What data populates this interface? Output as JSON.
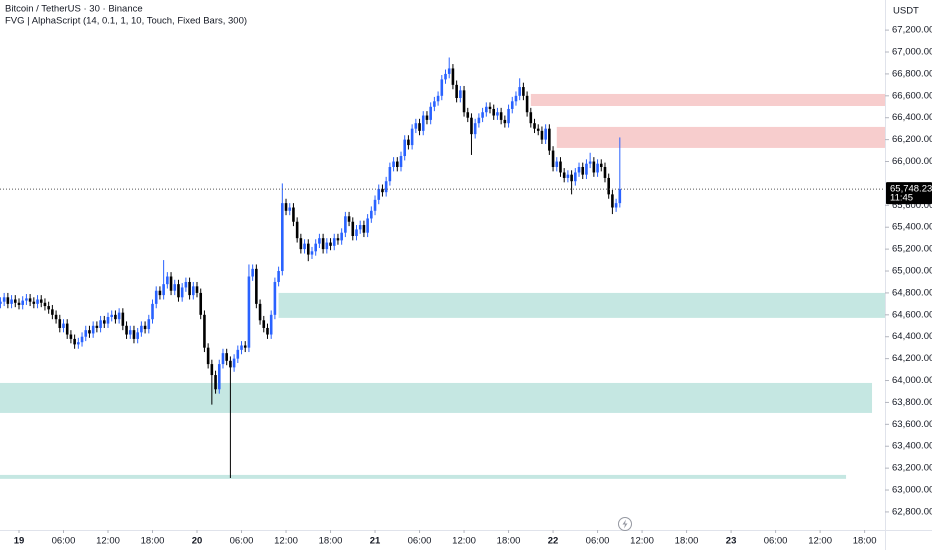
{
  "chart_data": {
    "type": "candlestick",
    "title": "Bitcoin / TetherUS · 30 · Binance",
    "subtitle": "FVG | AlphaScript (14, 0.1, 1, 10, Touch, Fixed Bars, 300)",
    "currency": "USDT",
    "up_color": "#2962ff",
    "down_color": "#000000",
    "candles": [
      [
        64700,
        64760,
        64660,
        64720
      ],
      [
        64720,
        64800,
        64680,
        64760
      ],
      [
        64760,
        64800,
        64660,
        64700
      ],
      [
        64700,
        64780,
        64660,
        64740
      ],
      [
        64740,
        64780,
        64670,
        64710
      ],
      [
        64710,
        64750,
        64650,
        64690
      ],
      [
        64690,
        64770,
        64650,
        64730
      ],
      [
        64730,
        64790,
        64690,
        64750
      ],
      [
        64750,
        64790,
        64680,
        64720
      ],
      [
        64720,
        64760,
        64660,
        64700
      ],
      [
        64700,
        64780,
        64660,
        64740
      ],
      [
        64740,
        64780,
        64670,
        64710
      ],
      [
        64710,
        64750,
        64640,
        64680
      ],
      [
        64680,
        64720,
        64610,
        64650
      ],
      [
        64650,
        64690,
        64560,
        64600
      ],
      [
        64600,
        64640,
        64520,
        64560
      ],
      [
        64560,
        64600,
        64440,
        64480
      ],
      [
        64480,
        64560,
        64440,
        64520
      ],
      [
        64520,
        64560,
        64380,
        64420
      ],
      [
        64420,
        64460,
        64340,
        64380
      ],
      [
        64380,
        64420,
        64290,
        64330
      ],
      [
        64330,
        64390,
        64290,
        64350
      ],
      [
        64350,
        64440,
        64310,
        64400
      ],
      [
        64400,
        64500,
        64360,
        64460
      ],
      [
        64460,
        64500,
        64390,
        64430
      ],
      [
        64430,
        64540,
        64390,
        64500
      ],
      [
        64500,
        64540,
        64440,
        64480
      ],
      [
        64480,
        64590,
        64440,
        64550
      ],
      [
        64550,
        64590,
        64480,
        64520
      ],
      [
        64520,
        64620,
        64480,
        64580
      ],
      [
        64580,
        64640,
        64540,
        64600
      ],
      [
        64600,
        64640,
        64520,
        64560
      ],
      [
        64560,
        64660,
        64520,
        64620
      ],
      [
        64620,
        64660,
        64460,
        64500
      ],
      [
        64500,
        64540,
        64380,
        64420
      ],
      [
        64420,
        64500,
        64380,
        64460
      ],
      [
        64460,
        64500,
        64340,
        64380
      ],
      [
        64380,
        64480,
        64340,
        64440
      ],
      [
        64440,
        64540,
        64400,
        64500
      ],
      [
        64500,
        64540,
        64430,
        64470
      ],
      [
        64470,
        64600,
        64430,
        64560
      ],
      [
        64560,
        64740,
        64520,
        64700
      ],
      [
        64700,
        64860,
        64660,
        64820
      ],
      [
        64820,
        64860,
        64740,
        64780
      ],
      [
        64780,
        65100,
        64740,
        64880
      ],
      [
        64880,
        64990,
        64840,
        64950
      ],
      [
        64950,
        64990,
        64780,
        64820
      ],
      [
        64820,
        64920,
        64780,
        64880
      ],
      [
        64880,
        64920,
        64720,
        64760
      ],
      [
        64760,
        64890,
        64720,
        64850
      ],
      [
        64850,
        64940,
        64810,
        64900
      ],
      [
        64900,
        64940,
        64740,
        64780
      ],
      [
        64780,
        64900,
        64740,
        64860
      ],
      [
        64860,
        64900,
        64760,
        64800
      ],
      [
        64800,
        64840,
        64560,
        64600
      ],
      [
        64600,
        64640,
        64260,
        64300
      ],
      [
        64300,
        64340,
        64110,
        64150
      ],
      [
        64150,
        64190,
        63780,
        64050
      ],
      [
        64050,
        64090,
        63880,
        63920
      ],
      [
        63920,
        64190,
        63880,
        64150
      ],
      [
        64150,
        64290,
        64110,
        64250
      ],
      [
        64250,
        64290,
        64140,
        64180
      ],
      [
        64180,
        64220,
        63110,
        64120
      ],
      [
        64120,
        64240,
        64080,
        64200
      ],
      [
        64200,
        64320,
        64160,
        64280
      ],
      [
        64280,
        64360,
        64240,
        64320
      ],
      [
        64320,
        64360,
        64260,
        64300
      ],
      [
        64300,
        65060,
        64260,
        64950
      ],
      [
        64950,
        65060,
        64910,
        65020
      ],
      [
        65020,
        65060,
        64660,
        64700
      ],
      [
        64700,
        64740,
        64510,
        64550
      ],
      [
        64550,
        64590,
        64440,
        64480
      ],
      [
        64480,
        64520,
        64380,
        64420
      ],
      [
        64420,
        64640,
        64380,
        64600
      ],
      [
        64600,
        64940,
        64560,
        64900
      ],
      [
        64900,
        65040,
        64860,
        65000
      ],
      [
        65000,
        65800,
        64960,
        65620
      ],
      [
        65620,
        65660,
        65510,
        65550
      ],
      [
        65550,
        65620,
        65510,
        65580
      ],
      [
        65580,
        65620,
        65410,
        65450
      ],
      [
        65450,
        65490,
        65260,
        65300
      ],
      [
        65300,
        65340,
        65160,
        65200
      ],
      [
        65200,
        65290,
        65160,
        65250
      ],
      [
        65250,
        65290,
        65090,
        65150
      ],
      [
        65150,
        65220,
        65110,
        65180
      ],
      [
        65180,
        65290,
        65140,
        65250
      ],
      [
        65250,
        65340,
        65210,
        65300
      ],
      [
        65300,
        65340,
        65160,
        65200
      ],
      [
        65200,
        65300,
        65160,
        65260
      ],
      [
        65260,
        65300,
        65190,
        65230
      ],
      [
        65230,
        65340,
        65190,
        65300
      ],
      [
        65300,
        65340,
        65240,
        65280
      ],
      [
        65280,
        65390,
        65240,
        65350
      ],
      [
        65350,
        65540,
        65310,
        65500
      ],
      [
        65500,
        65540,
        65410,
        65450
      ],
      [
        65450,
        65490,
        65280,
        65320
      ],
      [
        65320,
        65420,
        65280,
        65380
      ],
      [
        65380,
        65460,
        65340,
        65420
      ],
      [
        65420,
        65460,
        65310,
        65350
      ],
      [
        65350,
        65520,
        65310,
        65480
      ],
      [
        65480,
        65590,
        65440,
        65550
      ],
      [
        65550,
        65690,
        65510,
        65650
      ],
      [
        65650,
        65790,
        65610,
        65750
      ],
      [
        65750,
        65790,
        65680,
        65720
      ],
      [
        65720,
        65860,
        65680,
        65820
      ],
      [
        65820,
        65990,
        65780,
        65950
      ],
      [
        65950,
        66040,
        65910,
        66000
      ],
      [
        66000,
        66040,
        65910,
        65950
      ],
      [
        65950,
        66090,
        65910,
        66050
      ],
      [
        66050,
        66240,
        66010,
        66200
      ],
      [
        66200,
        66240,
        66110,
        66150
      ],
      [
        66150,
        66340,
        66110,
        66300
      ],
      [
        66300,
        66390,
        66260,
        66350
      ],
      [
        66350,
        66390,
        66240,
        66280
      ],
      [
        66280,
        66460,
        66240,
        66420
      ],
      [
        66420,
        66460,
        66340,
        66380
      ],
      [
        66380,
        66540,
        66340,
        66500
      ],
      [
        66500,
        66590,
        66460,
        66550
      ],
      [
        66550,
        66640,
        66510,
        66600
      ],
      [
        66600,
        66790,
        66560,
        66750
      ],
      [
        66750,
        66840,
        66710,
        66800
      ],
      [
        66800,
        66950,
        66760,
        66850
      ],
      [
        66850,
        66890,
        66660,
        66700
      ],
      [
        66700,
        66740,
        66540,
        66580
      ],
      [
        66580,
        66690,
        66540,
        66650
      ],
      [
        66650,
        66690,
        66410,
        66450
      ],
      [
        66450,
        66490,
        66360,
        66400
      ],
      [
        66400,
        66440,
        66060,
        66250
      ],
      [
        66250,
        66390,
        66210,
        66350
      ],
      [
        66350,
        66440,
        66310,
        66400
      ],
      [
        66400,
        66490,
        66360,
        66450
      ],
      [
        66450,
        66540,
        66410,
        66500
      ],
      [
        66500,
        66540,
        66440,
        66480
      ],
      [
        66480,
        66520,
        66380,
        66420
      ],
      [
        66420,
        66490,
        66380,
        66450
      ],
      [
        66450,
        66490,
        66340,
        66380
      ],
      [
        66380,
        66420,
        66310,
        66350
      ],
      [
        66350,
        66520,
        66310,
        66480
      ],
      [
        66480,
        66590,
        66440,
        66550
      ],
      [
        66550,
        66640,
        66510,
        66600
      ],
      [
        66600,
        66760,
        66560,
        66680
      ],
      [
        66680,
        66720,
        66560,
        66600
      ],
      [
        66600,
        66640,
        66410,
        66450
      ],
      [
        66450,
        66490,
        66310,
        66350
      ],
      [
        66350,
        66390,
        66260,
        66300
      ],
      [
        66300,
        66340,
        66240,
        66280
      ],
      [
        66280,
        66320,
        66160,
        66200
      ],
      [
        66200,
        66340,
        66160,
        66300
      ],
      [
        66300,
        66340,
        66060,
        66100
      ],
      [
        66100,
        66140,
        65910,
        65950
      ],
      [
        65950,
        66040,
        65910,
        66000
      ],
      [
        66000,
        66040,
        65860,
        65900
      ],
      [
        65900,
        65940,
        65810,
        65850
      ],
      [
        65850,
        65920,
        65810,
        65880
      ],
      [
        65880,
        65920,
        65700,
        65820
      ],
      [
        65820,
        65940,
        65780,
        65900
      ],
      [
        65900,
        65990,
        65860,
        65950
      ],
      [
        65950,
        65990,
        65840,
        65880
      ],
      [
        65880,
        66020,
        65840,
        65980
      ],
      [
        65980,
        66080,
        65940,
        66000
      ],
      [
        66000,
        66040,
        65860,
        65900
      ],
      [
        65900,
        66020,
        65860,
        65980
      ],
      [
        65980,
        66020,
        65910,
        65950
      ],
      [
        65950,
        65990,
        65810,
        65850
      ],
      [
        65850,
        65890,
        65660,
        65700
      ],
      [
        65700,
        65740,
        65520,
        65580
      ],
      [
        65580,
        65660,
        65540,
        65620
      ],
      [
        65620,
        66220,
        65580,
        65748.23
      ]
    ],
    "last_price": {
      "value": 65748.23,
      "label": "65,748.23"
    },
    "countdown": "11:45",
    "zones": [
      {
        "top": 66617,
        "bottom": 66507,
        "from": 143,
        "to": 238.5,
        "color": "#f7cdcd"
      },
      {
        "top": 66316,
        "bottom": 66124,
        "from": 150,
        "to": 238.5,
        "color": "#f7cdcd"
      },
      {
        "top": 64800,
        "bottom": 64572,
        "from": 75,
        "to": 238.5,
        "color": "#c5e7e2"
      },
      {
        "top": 63978,
        "bottom": 63704,
        "from": -0.12,
        "to": 235,
        "color": "#c5e7e2"
      },
      {
        "top": 63138,
        "bottom": 63102,
        "from": -0.12,
        "to": 228,
        "color": "#c5e7e2"
      }
    ],
    "xlim": [
      -0.12,
      238.5
    ],
    "ylim": [
      62635,
      67475
    ],
    "xticks": [
      {
        "value": 5,
        "label": "19"
      },
      {
        "value": 17,
        "label": "06:00"
      },
      {
        "value": 29,
        "label": "12:00"
      },
      {
        "value": 41,
        "label": "18:00"
      },
      {
        "value": 53,
        "label": "20"
      },
      {
        "value": 65,
        "label": "06:00"
      },
      {
        "value": 77,
        "label": "12:00"
      },
      {
        "value": 89,
        "label": "18:00"
      },
      {
        "value": 101,
        "label": "21"
      },
      {
        "value": 113,
        "label": "06:00"
      },
      {
        "value": 125,
        "label": "12:00"
      },
      {
        "value": 137,
        "label": "18:00"
      },
      {
        "value": 149,
        "label": "22"
      },
      {
        "value": 161,
        "label": "06:00"
      },
      {
        "value": 173,
        "label": "12:00"
      },
      {
        "value": 185,
        "label": "18:00"
      },
      {
        "value": 197,
        "label": "23"
      },
      {
        "value": 209,
        "label": "06:00"
      },
      {
        "value": 221,
        "label": "12:00"
      },
      {
        "value": 233,
        "label": "18:00"
      }
    ],
    "yticks": [
      {
        "value": 62800,
        "label": "62,800.00"
      },
      {
        "value": 63000,
        "label": "63,000.00"
      },
      {
        "value": 63200,
        "label": "63,200.00"
      },
      {
        "value": 63400,
        "label": "63,400.00"
      },
      {
        "value": 63600,
        "label": "63,600.00"
      },
      {
        "value": 63800,
        "label": "63,800.00"
      },
      {
        "value": 64000,
        "label": "64,000.00"
      },
      {
        "value": 64200,
        "label": "64,200.00"
      },
      {
        "value": 64400,
        "label": "64,400.00"
      },
      {
        "value": 64600,
        "label": "64,600.00"
      },
      {
        "value": 64800,
        "label": "64,800.00"
      },
      {
        "value": 65000,
        "label": "65,000.00"
      },
      {
        "value": 65200,
        "label": "65,200.00"
      },
      {
        "value": 65400,
        "label": "65,400.00"
      },
      {
        "value": 65600,
        "label": "65,600.00"
      },
      {
        "value": 66000,
        "label": "66,000.00"
      },
      {
        "value": 66200,
        "label": "66,200.00"
      },
      {
        "value": 66400,
        "label": "66,400.00"
      },
      {
        "value": 66600,
        "label": "66,600.00"
      },
      {
        "value": 66800,
        "label": "66,800.00"
      },
      {
        "value": 67000,
        "label": "67,000.00"
      },
      {
        "value": 67200,
        "label": "67,200.00"
      }
    ]
  }
}
